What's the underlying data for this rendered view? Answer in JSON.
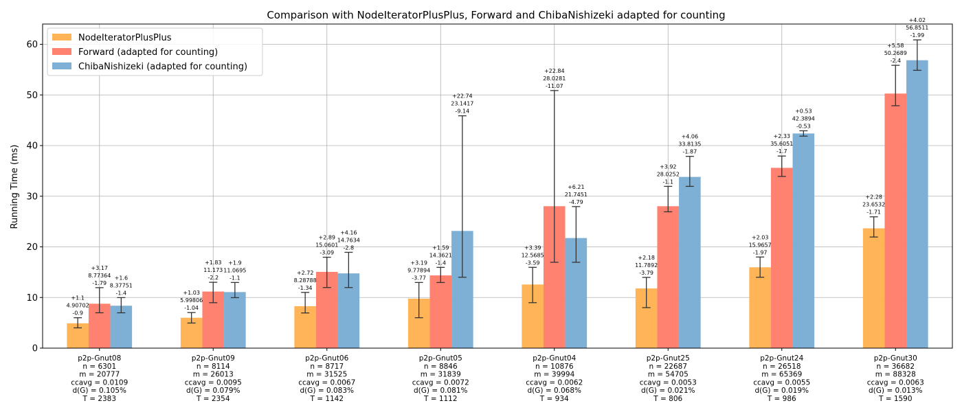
{
  "chart_data": {
    "type": "bar",
    "title": "Comparison with NodeIteratorPlusPlus, Forward and ChibaNishizeki adapted for counting",
    "ylabel": "Running Time (ms)",
    "xlabel": "",
    "ylim": [
      0,
      64
    ],
    "yticks": [
      0,
      10,
      20,
      30,
      40,
      50,
      60
    ],
    "grid": true,
    "legend_position": "top-left",
    "categories": [
      [
        "p2p-Gnut08",
        "n = 6301",
        "m = 20777",
        "ccavg = 0.0109",
        "d(G) = 0.105%",
        "T = 2383"
      ],
      [
        "p2p-Gnut09",
        "n = 8114",
        "m = 26013",
        "ccavg = 0.0095",
        "d(G) = 0.079%",
        "T = 2354"
      ],
      [
        "p2p-Gnut06",
        "n = 8717",
        "m = 31525",
        "ccavg = 0.0067",
        "d(G) = 0.083%",
        "T = 1142"
      ],
      [
        "p2p-Gnut05",
        "n = 8846",
        "m = 31839",
        "ccavg = 0.0072",
        "d(G) = 0.081%",
        "T = 1112"
      ],
      [
        "p2p-Gnut04",
        "n = 10876",
        "m = 39994",
        "ccavg = 0.0062",
        "d(G) = 0.068%",
        "T = 934"
      ],
      [
        "p2p-Gnut25",
        "n = 22687",
        "m = 54705",
        "ccavg = 0.0053",
        "d(G) = 0.021%",
        "T = 806"
      ],
      [
        "p2p-Gnut24",
        "n = 26518",
        "m = 65369",
        "ccavg = 0.0055",
        "d(G) = 0.019%",
        "T = 986"
      ],
      [
        "p2p-Gnut30",
        "n = 36682",
        "m = 88328",
        "ccavg = 0.0063",
        "d(G) = 0.013%",
        "T = 1590"
      ]
    ],
    "series": [
      {
        "name": "NodeIteratorPlusPlus",
        "color": "#ffb557",
        "values": [
          4.90702,
          5.99806,
          8.28788,
          9.77894,
          12.5685,
          11.7892,
          15.9657,
          23.6532
        ],
        "plus": [
          1.1,
          1.03,
          2.72,
          3.19,
          3.39,
          2.18,
          2.03,
          2.28
        ],
        "minus": [
          0.9,
          1.04,
          1.34,
          3.77,
          3.59,
          3.79,
          1.97,
          1.71
        ],
        "labels": [
          [
            "+1.1",
            "4.90702",
            "-0.9"
          ],
          [
            "+1.03",
            "5.99806",
            "-1.04"
          ],
          [
            "+2.72",
            "8.28788",
            "-1.34"
          ],
          [
            "+3.19",
            "9.77894",
            "-3.77"
          ],
          [
            "+3.39",
            "12.5685",
            "-3.59"
          ],
          [
            "+2.18",
            "11.7892",
            "-3.79"
          ],
          [
            "+2.03",
            "15.9657",
            "-1.97"
          ],
          [
            "+2.28",
            "23.6532",
            "-1.71"
          ]
        ]
      },
      {
        "name": "Forward (adapted for counting)",
        "color": "#ff8170",
        "values": [
          8.77364,
          11.173,
          15.0601,
          14.3621,
          28.0281,
          28.0252,
          35.6051,
          50.2689
        ],
        "plus": [
          3.17,
          1.83,
          2.89,
          1.59,
          22.84,
          3.92,
          2.33,
          5.58
        ],
        "minus": [
          1.79,
          2.2,
          3.09,
          1.4,
          11.07,
          1.1,
          1.7,
          2.4
        ],
        "labels": [
          [
            "+3.17",
            "8.77364",
            "-1.79"
          ],
          [
            "+1.83",
            "11.173",
            "-2.2"
          ],
          [
            "+2.89",
            "15.0601",
            "-3.09"
          ],
          [
            "+1.59",
            "14.3621",
            "-1.4"
          ],
          [
            "+22.84",
            "28.0281",
            "-11.07"
          ],
          [
            "+3.92",
            "28.0252",
            "-1.1"
          ],
          [
            "+2.33",
            "35.6051",
            "-1.7"
          ],
          [
            "+5.58",
            "50.2689",
            "-2.4"
          ]
        ]
      },
      {
        "name": "ChibaNishizeki (adapted for counting)",
        "color": "#7eb0d6",
        "values": [
          8.37751,
          11.0695,
          14.7634,
          23.1417,
          21.7451,
          33.8135,
          42.3894,
          56.8511
        ],
        "plus": [
          1.6,
          1.9,
          4.16,
          22.74,
          6.21,
          4.06,
          0.53,
          4.02
        ],
        "minus": [
          1.4,
          1.1,
          2.8,
          9.14,
          4.79,
          1.87,
          0.53,
          1.99
        ],
        "labels": [
          [
            "+1.6",
            "8.37751",
            "-1.4"
          ],
          [
            "+1.9",
            "11.0695",
            "-1.1"
          ],
          [
            "+4.16",
            "14.7634",
            "-2.8"
          ],
          [
            "+22.74",
            "23.1417",
            "-9.14"
          ],
          [
            "+6.21",
            "21.7451",
            "-4.79"
          ],
          [
            "+4.06",
            "33.8135",
            "-1.87"
          ],
          [
            "+0.53",
            "42.3894",
            "-0.53"
          ],
          [
            "+4.02",
            "56.8511",
            "-1.99"
          ]
        ]
      }
    ]
  }
}
